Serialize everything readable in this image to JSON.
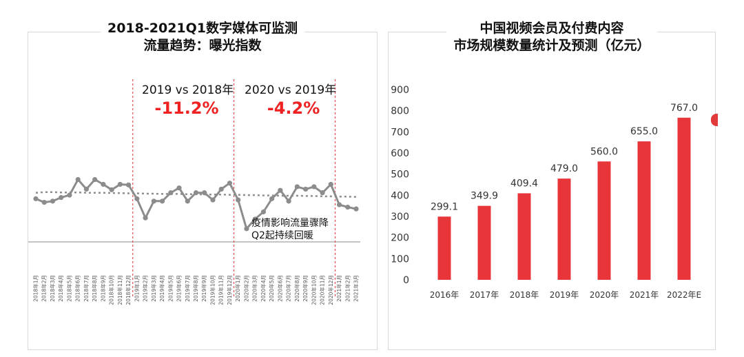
{
  "colors": {
    "bar": "#e8353a",
    "line": "#8c8c8c",
    "trend": "#8c8c8c",
    "highlight": "#ee2222",
    "divider": "#e03030"
  },
  "left_panel": {
    "title_line1": "2018-2021Q1数字媒体可监测",
    "title_line2": "流量趋势：曝光指数",
    "compare1_label": "2019 vs 2018年",
    "compare1_value": "-11.2%",
    "compare2_label": "2020 vs 2019年",
    "compare2_value": "-4.2%",
    "annotation_line1": "疫情影响流量骤降",
    "annotation_line2": "Q2起持续回暖"
  },
  "right_panel": {
    "title_line1": "中国视频会员及付费内容",
    "title_line2": "市场规模数量统计及预测（亿元）"
  },
  "chart_data": [
    {
      "type": "line",
      "title": "2018-2021Q1数字媒体可监测流量趋势：曝光指数",
      "x": [
        "2018年1月",
        "2018年2月",
        "2018年3月",
        "2018年4月",
        "2018年5月",
        "2018年6月",
        "2018年7月",
        "2018年8月",
        "2018年9月",
        "2018年10月",
        "2018年11月",
        "2018年12月",
        "2019年1月",
        "2019年2月",
        "2019年3月",
        "2019年4月",
        "2019年5月",
        "2019年6月",
        "2019年7月",
        "2019年8月",
        "2019年9月",
        "2019年10月",
        "2019年11月",
        "2019年12月",
        "2020年1月",
        "2020年2月",
        "2020年3月",
        "2020年4月",
        "2020年5月",
        "2020年6月",
        "2020年7月",
        "2020年8月",
        "2020年9月",
        "2020年10月",
        "2020年11月",
        "2020年12月",
        "2021年1月",
        "2021年2月",
        "2021年3月"
      ],
      "series": [
        {
          "values": [
            72,
            66,
            68,
            74,
            78,
            104,
            88,
            104,
            96,
            87,
            96,
            95,
            72,
            40,
            68,
            68,
            82,
            90,
            68,
            82,
            82,
            70,
            88,
            98,
            70,
            22,
            38,
            50,
            72,
            86,
            68,
            92,
            88,
            92,
            82,
            96,
            62,
            58,
            55
          ]
        },
        {
          "values": [
            82,
            83,
            83,
            82.5,
            82.5,
            82.5,
            82,
            82,
            82,
            81.5,
            81.5,
            81,
            81,
            80.5,
            80.5,
            80,
            80,
            80,
            79.5,
            79.5,
            79,
            79,
            79,
            78.5,
            78.5,
            78,
            78,
            77.5,
            77.5,
            77,
            77,
            77,
            76.5,
            76.5,
            76,
            76,
            75.5,
            75.5,
            75
          ]
        }
      ],
      "trendline": true,
      "ylim": [
        0,
        140
      ]
    },
    {
      "type": "bar",
      "title": "中国视频会员及付费内容市场规模数量统计及预测（亿元）",
      "categories": [
        "2016年",
        "2017年",
        "2018年",
        "2019年",
        "2020年",
        "2021年",
        "2022年E"
      ],
      "values": [
        299.1,
        349.9,
        409.4,
        479.0,
        560.0,
        655.0,
        767.0
      ],
      "value_labels": [
        "299.1",
        "349.9",
        "409.4",
        "479.0",
        "560.0",
        "655.0",
        "767.0"
      ],
      "ylim": [
        0,
        900
      ],
      "yticks": [
        "0",
        "100",
        "200",
        "300",
        "400",
        "500",
        "600",
        "700",
        "800",
        "900"
      ],
      "grid": false
    }
  ]
}
